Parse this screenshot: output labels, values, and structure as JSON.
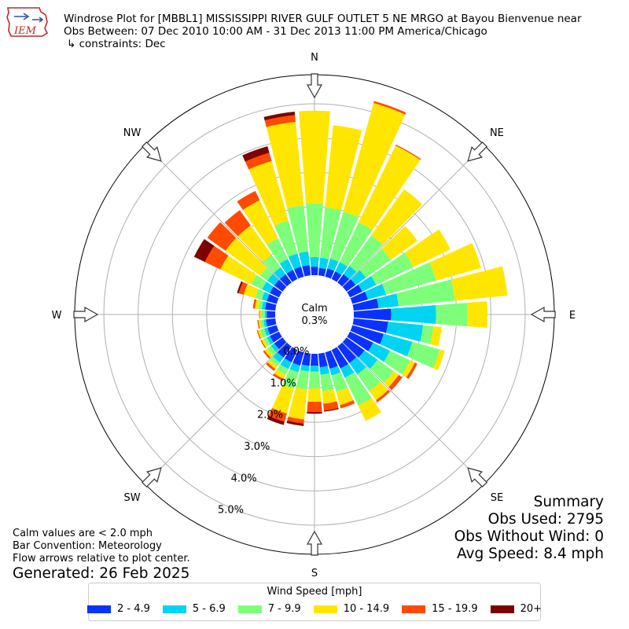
{
  "logo": {
    "text": "IEM"
  },
  "header": {
    "title_line1": "Windrose Plot for [MBBL1] MISSISSIPPI RIVER GULF OUTLET 5 NE MRGO at Bayou Bienvenue near",
    "title_line2": "Obs Between: 07 Dec 2010 10:00 AM - 31 Dec 2013 11:00 PM America/Chicago",
    "title_line3": "↳ constraints: Dec"
  },
  "summary": {
    "heading": "Summary",
    "obs_used": "Obs Used: 2795",
    "obs_without_wind": "Obs Without Wind: 0",
    "avg_speed": "Avg Speed: 8.4 mph"
  },
  "notes": {
    "calm_note": "Calm values are < 2.0 mph",
    "bar_convention": "Bar Convention: Meteorology",
    "flow_arrows": "Flow arrows relative to plot center."
  },
  "generated": "Generated: 26 Feb 2025",
  "chart_data": {
    "type": "windrose",
    "calm_label": "Calm",
    "calm_value": "0.3%",
    "calm_pct": 0.3,
    "compass_labels": [
      "N",
      "NE",
      "E",
      "SE",
      "S",
      "SW",
      "W",
      "NW"
    ],
    "radial_ticks": [
      0,
      1,
      2,
      3,
      4,
      5
    ],
    "radial_tick_labels": [
      "0.0%",
      "1.0%",
      "2.0%",
      "3.0%",
      "4.0%",
      "5.0%"
    ],
    "radial_max_pct": 5.85,
    "grid": true,
    "legend_title": "Wind Speed [mph]",
    "legend_placement": "bottom",
    "bins": [
      {
        "label": "2 - 4.9",
        "color": "#0a32ff"
      },
      {
        "label": "5 - 6.9",
        "color": "#00d4f2"
      },
      {
        "label": "7 - 9.9",
        "color": "#7dff7a"
      },
      {
        "label": "10 - 14.9",
        "color": "#ffe600"
      },
      {
        "label": "15 - 19.9",
        "color": "#ff4a00"
      },
      {
        "label": "20+",
        "color": "#7f0000"
      }
    ],
    "direction_step_deg": 10,
    "directions_deg": [
      0,
      10,
      20,
      30,
      40,
      50,
      60,
      70,
      80,
      90,
      100,
      110,
      120,
      130,
      140,
      150,
      160,
      170,
      180,
      190,
      200,
      210,
      220,
      230,
      240,
      250,
      260,
      270,
      280,
      290,
      300,
      310,
      320,
      330,
      340,
      350
    ],
    "cumulative_pct": [
      [
        0.25,
        0.53,
        2.09,
        4.8,
        4.8,
        4.8
      ],
      [
        0.22,
        0.52,
        1.99,
        4.4,
        4.4,
        4.4
      ],
      [
        0.25,
        0.55,
        1.97,
        5.26,
        5.32,
        5.32
      ],
      [
        0.25,
        0.55,
        1.84,
        4.32,
        4.35,
        4.35
      ],
      [
        0.3,
        0.6,
        1.7,
        3.35,
        3.35,
        3.35
      ],
      [
        0.33,
        0.7,
        1.6,
        2.55,
        2.55,
        2.55
      ],
      [
        0.4,
        0.85,
        2.05,
        3.25,
        3.25,
        3.25
      ],
      [
        0.47,
        1.02,
        2.54,
        3.9,
        3.9,
        3.9
      ],
      [
        0.73,
        1.32,
        2.97,
        4.51,
        4.51,
        4.51
      ],
      [
        1.09,
        2.4,
        3.32,
        3.9,
        3.9,
        3.9
      ],
      [
        1.01,
        2.04,
        2.34,
        2.58,
        2.58,
        2.58
      ],
      [
        0.95,
        1.82,
        2.65,
        2.8,
        2.8,
        2.8
      ],
      [
        0.75,
        1.3,
        1.95,
        2.1,
        2.18,
        2.18
      ],
      [
        0.65,
        1.12,
        1.7,
        1.88,
        2.0,
        2.0
      ],
      [
        0.6,
        1.0,
        1.6,
        1.93,
        2.0,
        2.0
      ],
      [
        0.6,
        0.9,
        1.8,
        2.3,
        2.3,
        2.3
      ],
      [
        0.5,
        0.7,
        1.2,
        1.6,
        1.7,
        1.7
      ],
      [
        0.4,
        0.62,
        1.1,
        1.47,
        1.67,
        1.7
      ],
      [
        0.35,
        0.52,
        1.01,
        1.4,
        1.7,
        1.75
      ],
      [
        0.36,
        0.52,
        1.05,
        1.93,
        2.05,
        2.12
      ],
      [
        0.4,
        0.6,
        1.1,
        1.85,
        2.1,
        2.2
      ],
      [
        0.4,
        0.62,
        0.8,
        0.94,
        1.0,
        1.0
      ],
      [
        0.4,
        0.58,
        0.71,
        0.81,
        0.88,
        0.88
      ],
      [
        0.3,
        0.42,
        0.55,
        0.65,
        0.7,
        0.7
      ],
      [
        0.3,
        0.4,
        0.5,
        0.57,
        0.6,
        0.6
      ],
      [
        0.28,
        0.38,
        0.5,
        0.57,
        0.6,
        0.6
      ],
      [
        0.28,
        0.35,
        0.45,
        0.5,
        0.53,
        0.53
      ],
      [
        0.25,
        0.3,
        0.4,
        0.45,
        0.47,
        0.47
      ],
      [
        0.3,
        0.4,
        0.5,
        0.6,
        0.66,
        0.66
      ],
      [
        0.3,
        0.45,
        0.65,
        1.0,
        1.15,
        1.2
      ],
      [
        0.3,
        0.55,
        0.9,
        1.9,
        2.4,
        2.75
      ],
      [
        0.3,
        0.55,
        0.8,
        2.05,
        2.7,
        2.7
      ],
      [
        0.3,
        0.55,
        1.0,
        2.05,
        2.6,
        2.6
      ],
      [
        0.3,
        0.65,
        1.32,
        2.55,
        2.85,
        2.85
      ],
      [
        0.3,
        0.7,
        1.7,
        3.5,
        3.75,
        3.95
      ],
      [
        0.3,
        0.7,
        2.05,
        4.5,
        4.7,
        4.8
      ]
    ]
  }
}
